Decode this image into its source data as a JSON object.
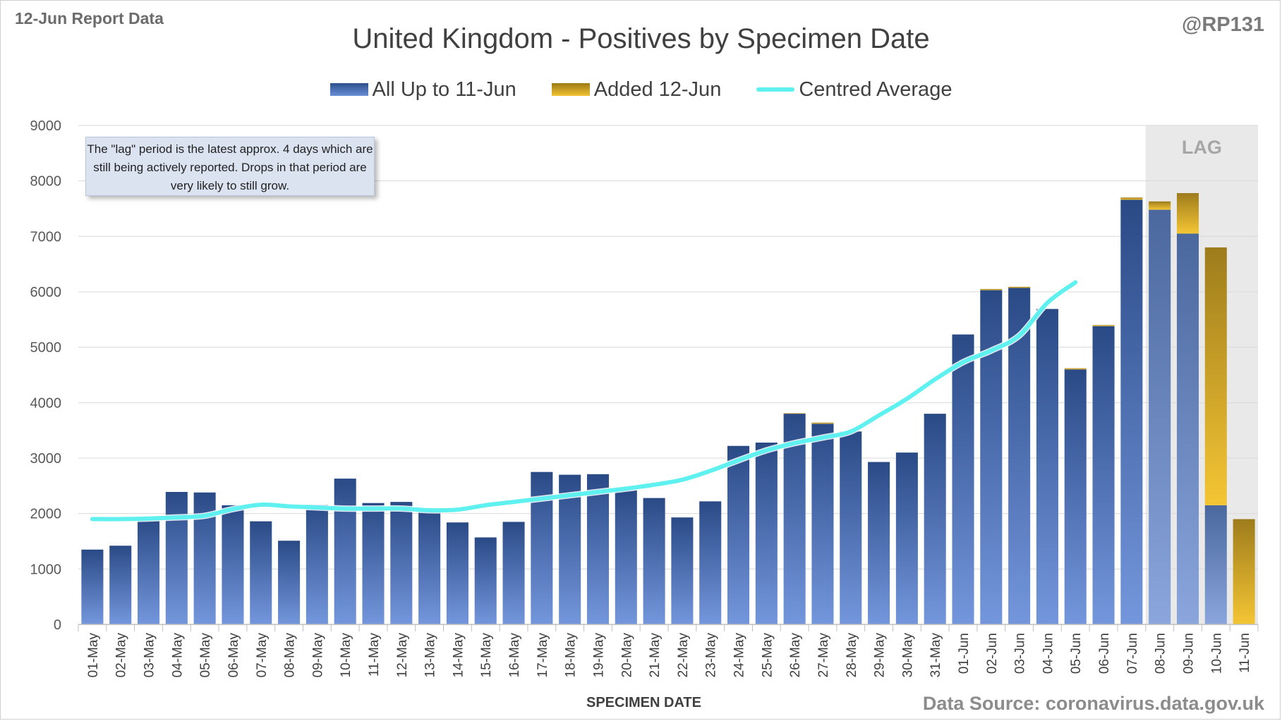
{
  "page": {
    "report_label": "12-Jun Report Data",
    "handle": "@RP131",
    "source": "Data Source: coronavirus.data.gov.uk"
  },
  "chart_data": {
    "type": "bar",
    "title": "United Kingdom - Positives by Specimen Date",
    "xlabel": "SPECIMEN DATE",
    "ylabel": "",
    "ylim": [
      0,
      9000
    ],
    "yticks": [
      0,
      1000,
      2000,
      3000,
      4000,
      5000,
      6000,
      7000,
      8000,
      9000
    ],
    "grid": true,
    "legend_position": "top-center",
    "categories": [
      "01-May",
      "02-May",
      "03-May",
      "04-May",
      "05-May",
      "06-May",
      "07-May",
      "08-May",
      "09-May",
      "10-May",
      "11-May",
      "12-May",
      "13-May",
      "14-May",
      "15-May",
      "16-May",
      "17-May",
      "18-May",
      "19-May",
      "20-May",
      "21-May",
      "22-May",
      "23-May",
      "24-May",
      "25-May",
      "26-May",
      "27-May",
      "28-May",
      "29-May",
      "30-May",
      "31-May",
      "01-Jun",
      "02-Jun",
      "03-Jun",
      "04-Jun",
      "05-Jun",
      "06-Jun",
      "07-Jun",
      "08-Jun",
      "09-Jun",
      "10-Jun",
      "11-Jun"
    ],
    "series": [
      {
        "name": "All Up to 11-Jun",
        "kind": "stacked-bar",
        "color": "#3a62b0",
        "values": [
          1350,
          1420,
          1930,
          2390,
          2380,
          2150,
          1860,
          1510,
          2160,
          2630,
          2190,
          2210,
          2080,
          1840,
          1570,
          1850,
          2750,
          2700,
          2710,
          2420,
          2280,
          1930,
          2220,
          3220,
          3280,
          3800,
          3620,
          3480,
          2930,
          3100,
          3800,
          5230,
          6030,
          6070,
          5690,
          4600,
          5380,
          7660,
          7480,
          7050,
          2150,
          0
        ]
      },
      {
        "name": "Added 12-Jun",
        "kind": "stacked-bar",
        "color": "#d9a520",
        "values": [
          0,
          0,
          0,
          0,
          0,
          0,
          0,
          0,
          0,
          0,
          0,
          0,
          0,
          0,
          0,
          0,
          0,
          0,
          0,
          0,
          0,
          0,
          0,
          0,
          0,
          10,
          20,
          0,
          0,
          0,
          0,
          0,
          20,
          20,
          0,
          20,
          20,
          40,
          150,
          730,
          4650,
          1900
        ]
      },
      {
        "name": "Centred Average",
        "kind": "line",
        "color": "#5ff0f0",
        "values": [
          1900,
          1900,
          1910,
          1930,
          1960,
          2080,
          2160,
          2130,
          2110,
          2090,
          2090,
          2090,
          2060,
          2070,
          2150,
          2210,
          2270,
          2330,
          2390,
          2450,
          2520,
          2610,
          2770,
          2960,
          3140,
          3270,
          3370,
          3480,
          3770,
          4070,
          4420,
          4730,
          4940,
          5210,
          5800,
          6170,
          null,
          null,
          null,
          null,
          null,
          null
        ]
      }
    ],
    "annotations": {
      "note": "The \"lag\" period is the latest approx. 4 days which are still being actively reported.  Drops in that period are very likely to still grow.",
      "lag_label": "LAG",
      "lag_start": "08-Jun",
      "lag_end": "11-Jun"
    }
  }
}
